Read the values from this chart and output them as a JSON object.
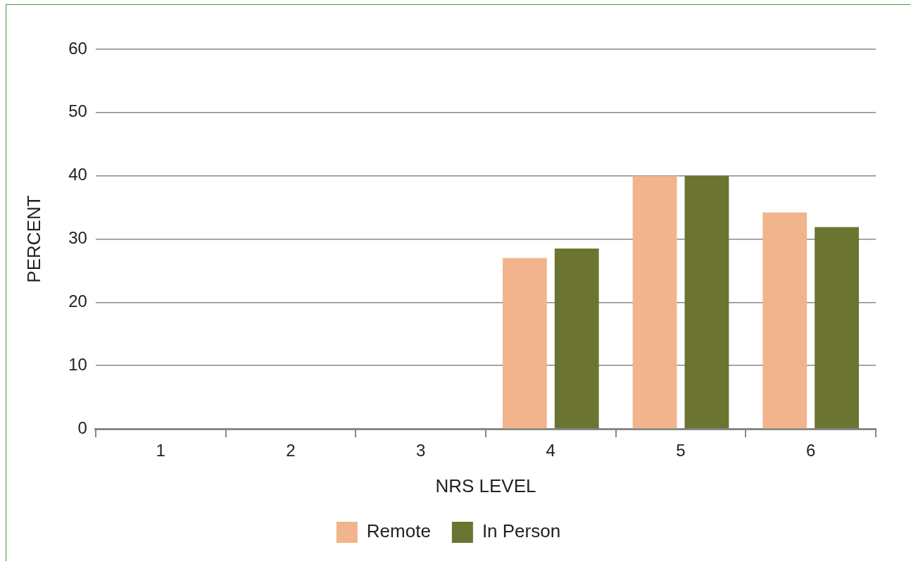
{
  "chart_data": {
    "type": "bar",
    "xlabel": "NRS LEVEL",
    "ylabel": "PERCENT",
    "categories": [
      "1",
      "2",
      "3",
      "4",
      "5",
      "6"
    ],
    "series": [
      {
        "name": "Remote",
        "color": "#f2b48c",
        "values": [
          0,
          0,
          0,
          27,
          40,
          34.2
        ]
      },
      {
        "name": "In Person",
        "color": "#6b7431",
        "values": [
          0,
          0,
          0,
          28.5,
          40,
          31.9
        ]
      }
    ],
    "ylim": [
      0,
      60
    ],
    "yticks": [
      0,
      10,
      20,
      30,
      40,
      50,
      60
    ],
    "grid": "y",
    "legend": "bottom"
  }
}
